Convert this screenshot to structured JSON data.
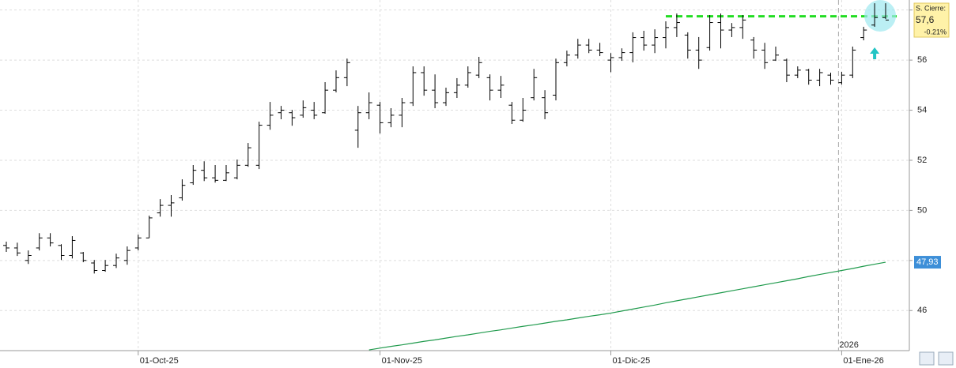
{
  "chart_data": {
    "type": "ohlc",
    "categories": [
      null,
      null,
      null,
      null,
      null,
      null,
      null,
      null,
      null,
      null,
      null,
      null,
      "01-Oct-25",
      null,
      null,
      null,
      null,
      null,
      null,
      null,
      null,
      null,
      null,
      null,
      null,
      null,
      null,
      null,
      null,
      null,
      null,
      null,
      null,
      null,
      "01-Nov-25",
      null,
      null,
      null,
      null,
      null,
      null,
      null,
      null,
      null,
      null,
      null,
      null,
      null,
      null,
      null,
      null,
      null,
      null,
      null,
      null,
      "01-Dic-25",
      null,
      null,
      null,
      null,
      null,
      null,
      null,
      null,
      null,
      null,
      null,
      null,
      null,
      null,
      null,
      null,
      null,
      null,
      null,
      null,
      "01-Ene-26",
      null,
      null,
      null,
      null
    ],
    "open": [
      48.6,
      48.5,
      48.0,
      48.5,
      48.9,
      48.6,
      48.2,
      48.3,
      47.9,
      47.6,
      47.8,
      48.0,
      48.5,
      48.9,
      49.9,
      50.2,
      50.5,
      51.1,
      51.6,
      51.3,
      51.2,
      51.3,
      51.8,
      51.8,
      53.4,
      53.9,
      53.9,
      53.8,
      54.0,
      53.9,
      54.8,
      55.3,
      53.2,
      53.9,
      54.2,
      53.5,
      53.8,
      54.3,
      55.5,
      54.8,
      54.3,
      54.7,
      55.0,
      55.4,
      55.3,
      54.8,
      54.2,
      53.6,
      54.5,
      54.5,
      54.6,
      55.9,
      56.2,
      56.6,
      56.4,
      56.0,
      56.1,
      56.3,
      56.9,
      56.6,
      56.9,
      57.3,
      57.0,
      56.4,
      56.5,
      57.5,
      57.2,
      57.3,
      56.8,
      56.4,
      56.0,
      56.0,
      55.4,
      55.6,
      55.2,
      55.4,
      55.1,
      55.4,
      56.9,
      57.4,
      57.7
    ],
    "high": [
      48.75,
      48.71,
      48.4,
      49.09,
      49.09,
      48.65,
      48.97,
      48.34,
      48.02,
      48.02,
      48.27,
      48.56,
      49.03,
      49.79,
      50.45,
      50.61,
      51.24,
      51.81,
      51.96,
      51.81,
      51.81,
      52.03,
      52.69,
      53.54,
      54.33,
      54.17,
      54.01,
      54.39,
      54.33,
      55.12,
      55.59,
      56.06,
      54.17,
      54.71,
      54.33,
      54.08,
      54.49,
      55.75,
      55.75,
      55.43,
      54.9,
      55.28,
      55.75,
      56.13,
      55.43,
      55.37,
      54.33,
      54.49,
      55.65,
      54.8,
      56.06,
      56.38,
      56.85,
      56.85,
      56.69,
      56.28,
      56.47,
      57.11,
      57.17,
      57.23,
      57.55,
      57.86,
      57.11,
      56.92,
      57.8,
      57.86,
      57.48,
      57.8,
      56.92,
      56.69,
      56.54,
      56.06,
      55.75,
      55.65,
      55.65,
      55.5,
      55.53,
      56.54,
      57.33,
      58.27,
      58.27
    ],
    "low": [
      48.34,
      48.18,
      47.86,
      48.4,
      48.56,
      48.02,
      48.08,
      47.93,
      47.48,
      47.55,
      47.7,
      47.83,
      48.4,
      48.9,
      49.75,
      49.75,
      50.39,
      51.02,
      51.17,
      51.11,
      51.17,
      51.24,
      51.74,
      51.65,
      53.22,
      53.64,
      53.38,
      53.7,
      53.64,
      53.86,
      54.71,
      54.96,
      52.5,
      53.64,
      53.07,
      53.32,
      53.32,
      54.17,
      54.58,
      54.08,
      54.17,
      54.49,
      54.9,
      55.28,
      54.39,
      54.49,
      53.45,
      53.54,
      54.39,
      53.64,
      54.39,
      55.75,
      56.06,
      56.28,
      56.16,
      55.52,
      55.97,
      55.91,
      56.38,
      56.28,
      56.47,
      56.92,
      56.06,
      55.65,
      56.38,
      56.47,
      56.92,
      56.85,
      56.06,
      55.65,
      55.97,
      55.12,
      55.28,
      55.02,
      54.96,
      55.02,
      55.02,
      55.28,
      56.79,
      57.33,
      57.64
    ],
    "close": [
      48.5,
      48.3,
      48.2,
      48.9,
      48.7,
      48.2,
      48.8,
      48.0,
      47.6,
      47.8,
      48.1,
      48.4,
      48.9,
      49.7,
      50.2,
      50.3,
      51.0,
      51.6,
      51.3,
      51.2,
      51.5,
      51.8,
      52.5,
      53.4,
      53.8,
      54.0,
      53.7,
      54.1,
      53.8,
      54.8,
      55.3,
      55.9,
      53.9,
      54.3,
      53.5,
      53.8,
      54.3,
      55.5,
      54.8,
      54.3,
      54.7,
      55.0,
      55.5,
      55.9,
      54.8,
      55.0,
      53.6,
      54.0,
      55.3,
      53.9,
      55.9,
      56.2,
      56.6,
      56.4,
      56.3,
      56.1,
      56.3,
      56.9,
      56.6,
      56.9,
      57.3,
      57.5,
      56.4,
      56.0,
      57.5,
      57.2,
      57.3,
      57.6,
      56.4,
      55.9,
      56.2,
      55.4,
      55.6,
      55.2,
      55.5,
      55.2,
      55.4,
      56.4,
      57.2,
      57.7,
      57.6
    ],
    "color": "#000000",
    "series": [
      {
        "color": "#1f9a4c",
        "values": [
          null,
          null,
          null,
          null,
          null,
          null,
          null,
          null,
          null,
          null,
          null,
          null,
          null,
          null,
          null,
          null,
          null,
          null,
          null,
          null,
          null,
          null,
          null,
          null,
          null,
          null,
          null,
          null,
          null,
          null,
          null,
          null,
          null,
          44.43,
          44.5,
          44.57,
          44.63,
          44.7,
          44.77,
          44.83,
          44.9,
          44.97,
          45.03,
          45.1,
          45.17,
          45.23,
          45.3,
          45.37,
          45.43,
          45.5,
          45.57,
          45.63,
          45.7,
          45.77,
          45.83,
          45.9,
          45.98,
          46.06,
          46.14,
          46.22,
          46.31,
          46.39,
          46.47,
          46.55,
          46.63,
          46.71,
          46.79,
          46.87,
          46.95,
          47.03,
          47.11,
          47.19,
          47.27,
          47.36,
          47.44,
          47.52,
          47.6,
          47.68,
          47.77,
          47.85,
          47.93
        ],
        "last_label": "47,93"
      }
    ],
    "hline": {
      "value": 57.75,
      "color": "#22dd22"
    },
    "close_box": {
      "title": "S. Cierre:",
      "price": "57,6",
      "change": "-0.21%"
    },
    "year_label": "2026",
    "ylim": [
      44.4,
      58.4
    ],
    "yticks": [
      46,
      48,
      50,
      52,
      54,
      56,
      58
    ],
    "grid": true
  }
}
